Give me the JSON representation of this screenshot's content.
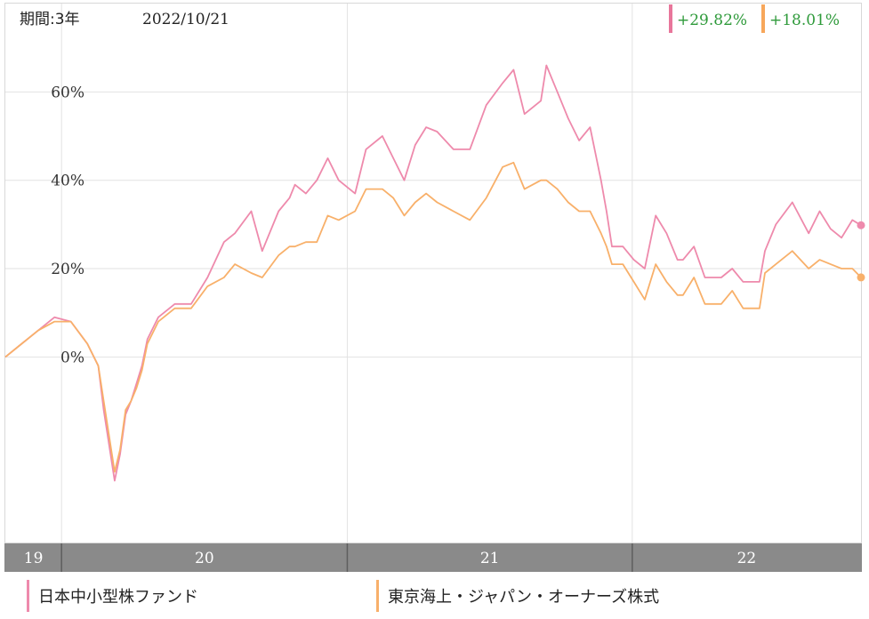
{
  "header": {
    "period": "期間:3年",
    "date": "2022/10/21",
    "returns": [
      {
        "value": "+29.82%",
        "color": "#e8769b"
      },
      {
        "value": "+18.01%",
        "color": "#f7a75b"
      }
    ]
  },
  "colors": {
    "series1": "#ee8aac",
    "series2": "#f8b06a",
    "return_text": "#2e9a3a",
    "grid": "#e2e2e2",
    "axis_band": "#8a8a8a",
    "axis_text": "#ffffff"
  },
  "chart_data": {
    "type": "line",
    "title": "",
    "xlabel": "",
    "ylabel": "",
    "x_ticks": [
      "19",
      "20",
      "21",
      "22"
    ],
    "y_ticks": [
      "60%",
      "40%",
      "20%",
      "0%"
    ],
    "xlim": [
      "2019-10-21",
      "2022-10-21"
    ],
    "ylim": [
      -42,
      80
    ],
    "grid": true,
    "legend_position": "bottom",
    "series": [
      {
        "name": "日本中小型株ファンド",
        "color": "#ee8aac",
        "x": [
          "2019-10-21",
          "2019-11-11",
          "2019-12-02",
          "2019-12-23",
          "2020-01-13",
          "2020-02-03",
          "2020-02-17",
          "2020-02-24",
          "2020-03-09",
          "2020-03-16",
          "2020-03-23",
          "2020-03-30",
          "2020-04-06",
          "2020-04-13",
          "2020-04-20",
          "2020-05-04",
          "2020-05-25",
          "2020-06-15",
          "2020-07-06",
          "2020-07-27",
          "2020-08-10",
          "2020-08-31",
          "2020-09-14",
          "2020-10-05",
          "2020-10-19",
          "2020-10-26",
          "2020-11-09",
          "2020-11-23",
          "2020-12-07",
          "2020-12-21",
          "2021-01-11",
          "2021-01-25",
          "2021-02-15",
          "2021-03-01",
          "2021-03-15",
          "2021-03-29",
          "2021-04-12",
          "2021-04-26",
          "2021-05-17",
          "2021-06-07",
          "2021-06-28",
          "2021-07-19",
          "2021-08-02",
          "2021-08-16",
          "2021-09-06",
          "2021-09-13",
          "2021-09-27",
          "2021-10-11",
          "2021-10-25",
          "2021-11-08",
          "2021-11-22",
          "2021-11-29",
          "2021-12-06",
          "2021-12-20",
          "2022-01-03",
          "2022-01-17",
          "2022-01-31",
          "2022-02-14",
          "2022-02-28",
          "2022-03-07",
          "2022-03-21",
          "2022-04-04",
          "2022-04-25",
          "2022-05-09",
          "2022-05-23",
          "2022-06-13",
          "2022-06-20",
          "2022-07-04",
          "2022-07-25",
          "2022-08-15",
          "2022-08-29",
          "2022-09-12",
          "2022-09-26",
          "2022-10-10",
          "2022-10-21"
        ],
        "y": [
          0,
          3,
          6,
          9,
          8,
          3,
          -2,
          -12,
          -28,
          -22,
          -13,
          -10,
          -6,
          -2,
          4,
          9,
          12,
          12,
          18,
          26,
          28,
          33,
          24,
          33,
          36,
          39,
          37,
          40,
          45,
          40,
          37,
          47,
          50,
          45,
          40,
          48,
          52,
          51,
          47,
          47,
          57,
          62,
          65,
          55,
          58,
          66,
          60,
          54,
          49,
          52,
          40,
          33,
          25,
          25,
          22,
          20,
          32,
          28,
          22,
          22,
          25,
          18,
          18,
          20,
          17,
          17,
          24,
          30,
          35,
          28,
          33,
          29,
          27,
          31,
          29.82
        ]
      },
      {
        "name": "東京海上・ジャパン・オーナーズ株式",
        "color": "#f8b06a",
        "x": [
          "2019-10-21",
          "2019-11-11",
          "2019-12-02",
          "2019-12-23",
          "2020-01-13",
          "2020-02-03",
          "2020-02-17",
          "2020-02-24",
          "2020-03-09",
          "2020-03-16",
          "2020-03-23",
          "2020-03-30",
          "2020-04-06",
          "2020-04-13",
          "2020-04-20",
          "2020-05-04",
          "2020-05-25",
          "2020-06-15",
          "2020-07-06",
          "2020-07-27",
          "2020-08-10",
          "2020-08-31",
          "2020-09-14",
          "2020-10-05",
          "2020-10-19",
          "2020-10-26",
          "2020-11-09",
          "2020-11-23",
          "2020-12-07",
          "2020-12-21",
          "2021-01-11",
          "2021-01-25",
          "2021-02-15",
          "2021-03-01",
          "2021-03-15",
          "2021-03-29",
          "2021-04-12",
          "2021-04-26",
          "2021-05-17",
          "2021-06-07",
          "2021-06-28",
          "2021-07-19",
          "2021-08-02",
          "2021-08-16",
          "2021-09-06",
          "2021-09-13",
          "2021-09-27",
          "2021-10-11",
          "2021-10-25",
          "2021-11-08",
          "2021-11-22",
          "2021-11-29",
          "2021-12-06",
          "2021-12-20",
          "2022-01-03",
          "2022-01-17",
          "2022-01-31",
          "2022-02-14",
          "2022-02-28",
          "2022-03-07",
          "2022-03-21",
          "2022-04-04",
          "2022-04-25",
          "2022-05-09",
          "2022-05-23",
          "2022-06-13",
          "2022-06-20",
          "2022-07-04",
          "2022-07-25",
          "2022-08-15",
          "2022-08-29",
          "2022-09-12",
          "2022-09-26",
          "2022-10-10",
          "2022-10-21"
        ],
        "y": [
          0,
          3,
          6,
          8,
          8,
          3,
          -2,
          -10,
          -26,
          -21,
          -12,
          -10,
          -7,
          -3,
          3,
          8,
          11,
          11,
          16,
          18,
          21,
          19,
          18,
          23,
          25,
          25,
          26,
          26,
          32,
          31,
          33,
          38,
          38,
          36,
          32,
          35,
          37,
          35,
          33,
          31,
          36,
          43,
          44,
          38,
          40,
          40,
          38,
          35,
          33,
          33,
          28,
          25,
          21,
          21,
          17,
          13,
          21,
          17,
          14,
          14,
          18,
          12,
          12,
          15,
          11,
          11,
          19,
          21,
          24,
          20,
          22,
          21,
          20,
          20,
          18.01
        ]
      }
    ]
  }
}
